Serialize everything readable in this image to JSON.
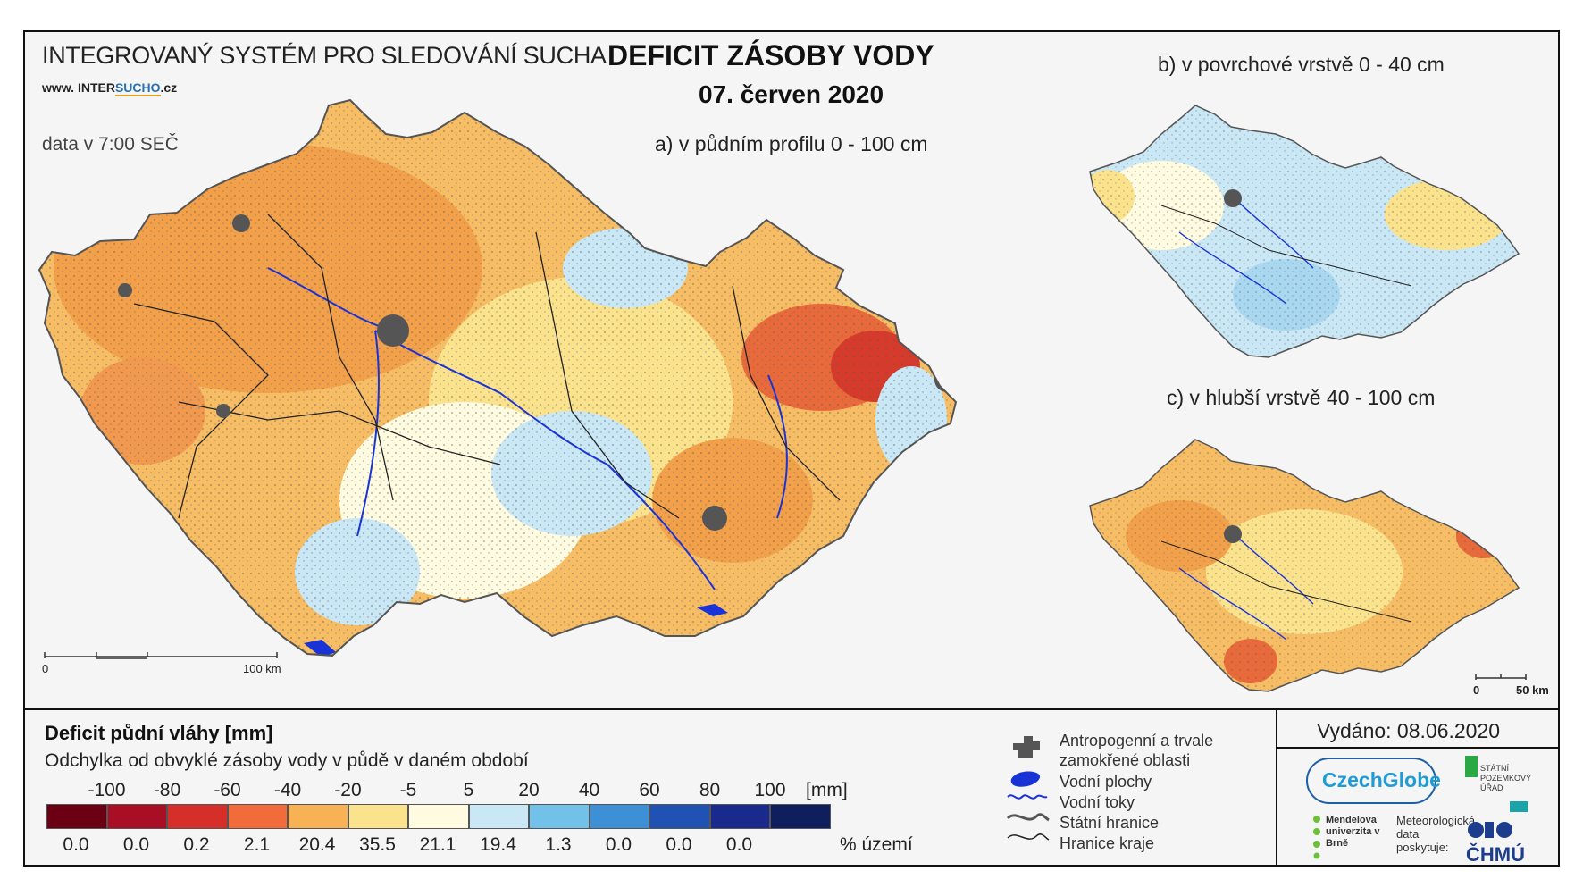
{
  "header": {
    "system_title": "INTEGROVANÝ SYSTÉM PRO SLEDOVÁNÍ SUCHA",
    "website_prefix": "www. ",
    "website_inter": "INTER",
    "website_highlight": "SUCHO",
    "website_suffix": ".cz",
    "data_time": "data v 7:00 SEČ",
    "main_title": "DEFICIT ZÁSOBY VODY",
    "date": "07. červen 2020"
  },
  "maps": {
    "a_title": "a) v půdním profilu 0 - 100 cm",
    "b_title": "b) v povrchové vrstvě 0 - 40 cm",
    "c_title": "c) v hlubší vrstvě 40 - 100 cm",
    "scale_main": {
      "start": "0",
      "end": "100 km"
    },
    "scale_small": {
      "start": "0",
      "end": "50 km"
    }
  },
  "legend": {
    "title": "Deficit půdní vláhy  [mm]",
    "subtitle": "Odchylka od obvyklé zásoby vody v půdě v daném období",
    "unit": "[mm]",
    "pct_unit": "% území",
    "break_labels": [
      "-100",
      "-80",
      "-60",
      "-40",
      "-20",
      "-5",
      "5",
      "20",
      "40",
      "60",
      "80",
      "100"
    ],
    "colors": [
      "#6b0015",
      "#a80f25",
      "#d62f2a",
      "#f26b3a",
      "#f8b255",
      "#fbe38e",
      "#fffbe0",
      "#c9e7f5",
      "#72c1e8",
      "#3d8fd6",
      "#1f52b3",
      "#1a2a8c",
      "#0f1f5e"
    ],
    "percentages": [
      "0.0",
      "0.0",
      "0.2",
      "2.1",
      "20.4",
      "35.5",
      "21.1",
      "19.4",
      "1.3",
      "0.0",
      "0.0",
      "0.0",
      ""
    ]
  },
  "symbols": {
    "anthropogenic": "Antropogenní a trvale zamokřené oblasti",
    "water_bodies": "Vodní plochy",
    "rivers": "Vodní toky",
    "state_border": "Státní hranice",
    "region_border": "Hranice kraje",
    "colors": {
      "anthropogenic": "#555555",
      "water": "#1a33d6"
    }
  },
  "footer": {
    "issued": "Vydáno: 08.06.2020",
    "czechglobe": "CzechGlobe",
    "spu": "STÁTNÍ POZEMKOVÝ ÚŘAD",
    "mendel": "Mendelova univerzita v Brně",
    "meteo": "Meteorologická data poskytuje:",
    "chmu": "ČHMÚ"
  }
}
